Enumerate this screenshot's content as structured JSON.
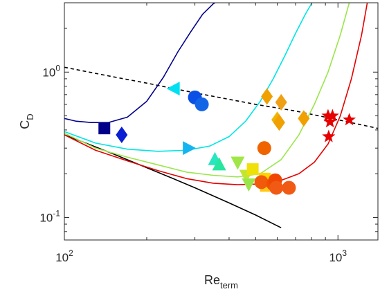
{
  "chart_data": {
    "type": "scatter",
    "xscale": "log",
    "yscale": "log",
    "xlim": [
      100,
      1400
    ],
    "ylim": [
      0.07,
      3.0
    ],
    "grid": false,
    "box": true,
    "xlabel": {
      "main": "Re",
      "sub": "term"
    },
    "ylabel": {
      "main": "C",
      "sub": "D"
    },
    "xticks": [
      {
        "value": 100,
        "base": "10",
        "exp": "2"
      },
      {
        "value": 1000,
        "base": "10",
        "exp": "3"
      }
    ],
    "yticks": [
      {
        "value": 0.1,
        "base": "10",
        "exp": "-1"
      },
      {
        "value": 1,
        "base": "10",
        "exp": "0"
      }
    ],
    "curves": [
      {
        "color": "#000000",
        "dash": false,
        "x": [
          100,
          125,
          150,
          200,
          250,
          300,
          400,
          500,
          620
        ],
        "y": [
          0.37,
          0.315,
          0.275,
          0.22,
          0.185,
          0.16,
          0.126,
          0.104,
          0.085
        ]
      },
      {
        "color": "#000000",
        "dash": true,
        "x": [
          100,
          150,
          200,
          300,
          500,
          700,
          1000,
          1400
        ],
        "y": [
          1.08,
          0.93,
          0.84,
          0.72,
          0.6,
          0.54,
          0.47,
          0.41
        ]
      },
      {
        "color": "#00008b",
        "dash": false,
        "x": [
          100,
          110,
          125,
          145,
          170,
          200,
          230,
          260,
          290,
          320,
          350,
          375
        ],
        "y": [
          0.48,
          0.46,
          0.45,
          0.45,
          0.49,
          0.63,
          0.92,
          1.38,
          1.9,
          2.5,
          2.95,
          3.2
        ]
      },
      {
        "color": "#00e5e5",
        "dash": false,
        "x": [
          100,
          130,
          170,
          220,
          280,
          340,
          400,
          460,
          520,
          580,
          640,
          700,
          760,
          820
        ],
        "y": [
          0.39,
          0.325,
          0.295,
          0.285,
          0.29,
          0.31,
          0.36,
          0.46,
          0.63,
          0.9,
          1.3,
          1.85,
          2.5,
          3.2
        ]
      },
      {
        "color": "#9ae64a",
        "dash": false,
        "x": [
          100,
          130,
          170,
          220,
          280,
          350,
          430,
          520,
          620,
          720,
          820,
          920,
          1020,
          1100
        ],
        "y": [
          0.38,
          0.3,
          0.26,
          0.23,
          0.205,
          0.195,
          0.19,
          0.2,
          0.25,
          0.37,
          0.6,
          1.0,
          1.8,
          3.0
        ]
      },
      {
        "color": "#e60000",
        "dash": false,
        "x": [
          100,
          130,
          170,
          220,
          280,
          350,
          430,
          520,
          620,
          720,
          820,
          920,
          1020,
          1120,
          1220,
          1280
        ],
        "y": [
          0.37,
          0.29,
          0.245,
          0.21,
          0.185,
          0.172,
          0.168,
          0.17,
          0.18,
          0.2,
          0.24,
          0.32,
          0.5,
          0.9,
          1.8,
          3.0
        ]
      }
    ],
    "points": [
      {
        "shape": "square",
        "color": "#00008b",
        "x": 140,
        "y": 0.41
      },
      {
        "shape": "diamond",
        "color": "#0a1ed2",
        "x": 162,
        "y": 0.37
      },
      {
        "shape": "circle",
        "color": "#0a50e6",
        "x": 300,
        "y": 0.67
      },
      {
        "shape": "circle",
        "color": "#1464e6",
        "x": 318,
        "y": 0.6
      },
      {
        "shape": "triangle-left",
        "color": "#00e0f0",
        "x": 252,
        "y": 0.77
      },
      {
        "shape": "triangle-right",
        "color": "#14b4f0",
        "x": 284,
        "y": 0.3
      },
      {
        "shape": "triangle-up",
        "color": "#28e6c0",
        "x": 355,
        "y": 0.25
      },
      {
        "shape": "triangle-up",
        "color": "#28e6a0",
        "x": 368,
        "y": 0.23
      },
      {
        "shape": "triangle-down",
        "color": "#a0e646",
        "x": 430,
        "y": 0.24
      },
      {
        "shape": "triangle-down",
        "color": "#c0e632",
        "x": 462,
        "y": 0.195
      },
      {
        "shape": "triangle-down",
        "color": "#9ae64a",
        "x": 472,
        "y": 0.17
      },
      {
        "shape": "square",
        "color": "#f0e00a",
        "x": 488,
        "y": 0.215
      },
      {
        "shape": "square",
        "color": "#ffd200",
        "x": 540,
        "y": 0.185
      },
      {
        "shape": "square",
        "color": "#ffc814",
        "x": 545,
        "y": 0.165
      },
      {
        "shape": "circle",
        "color": "#f06400",
        "x": 538,
        "y": 0.3
      },
      {
        "shape": "circle",
        "color": "#f05a0a",
        "x": 525,
        "y": 0.175
      },
      {
        "shape": "circle",
        "color": "#f05000",
        "x": 580,
        "y": 0.17
      },
      {
        "shape": "circle",
        "color": "#f04600",
        "x": 590,
        "y": 0.18
      },
      {
        "shape": "circle",
        "color": "#f05a14",
        "x": 595,
        "y": 0.16
      },
      {
        "shape": "circle",
        "color": "#f05a14",
        "x": 662,
        "y": 0.16
      },
      {
        "shape": "diamond",
        "color": "#f0a000",
        "x": 550,
        "y": 0.68
      },
      {
        "shape": "diamond",
        "color": "#f0a014",
        "x": 620,
        "y": 0.62
      },
      {
        "shape": "diamond",
        "color": "#f0b400",
        "x": 600,
        "y": 0.47
      },
      {
        "shape": "diamond",
        "color": "#f0a000",
        "x": 610,
        "y": 0.45
      },
      {
        "shape": "diamond",
        "color": "#f0a000",
        "x": 750,
        "y": 0.48
      },
      {
        "shape": "star",
        "color": "#e60000",
        "x": 920,
        "y": 0.5
      },
      {
        "shape": "star",
        "color": "#e60000",
        "x": 955,
        "y": 0.5
      },
      {
        "shape": "star",
        "color": "#e60000",
        "x": 935,
        "y": 0.455
      },
      {
        "shape": "star",
        "color": "#e60000",
        "x": 1100,
        "y": 0.47
      },
      {
        "shape": "star",
        "color": "#e60000",
        "x": 925,
        "y": 0.36
      }
    ]
  }
}
